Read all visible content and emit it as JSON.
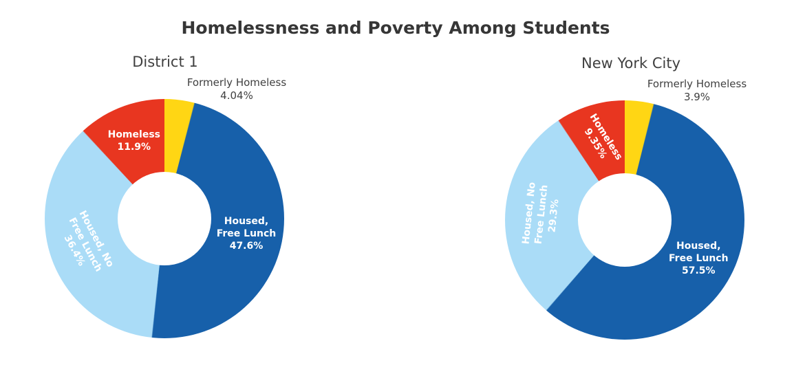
{
  "page_title": "Homelessness and Poverty Among Students",
  "chart_data": [
    {
      "type": "pie",
      "variant": "donut",
      "title": "District 1",
      "hole_ratio": 0.39,
      "direction": "clockwise",
      "start_angle_deg": 0,
      "inside_label_color": "#FFFFFF",
      "segments": [
        {
          "name": "Formerly Homeless",
          "value": 4.04,
          "display": "4.04%",
          "color": "#FFD614",
          "label_lines": [
            "Formerly Homeless",
            "4.04%"
          ],
          "label_placement": "outside",
          "label_rotation": 0
        },
        {
          "name": "Housed, Free Lunch",
          "value": 47.6,
          "display": "47.6%",
          "color": "#1760AA",
          "label_lines": [
            "Housed,",
            "Free Lunch",
            "47.6%"
          ],
          "label_placement": "inside",
          "label_rotation": 0
        },
        {
          "name": "Housed, No Free Lunch",
          "value": 36.4,
          "display": "36.4%",
          "color": "#AADCF7",
          "label_lines": [
            "Housed, No",
            "Free Lunch",
            "36.4%"
          ],
          "label_placement": "inside",
          "label_rotation": 62
        },
        {
          "name": "Homeless",
          "value": 11.9,
          "display": "11.9%",
          "color": "#E83620",
          "label_lines": [
            "Homeless",
            "11.9%"
          ],
          "label_placement": "inside",
          "label_rotation": 0
        }
      ]
    },
    {
      "type": "pie",
      "variant": "donut",
      "title": "New York City",
      "hole_ratio": 0.39,
      "direction": "clockwise",
      "start_angle_deg": 0,
      "inside_label_color": "#FFFFFF",
      "segments": [
        {
          "name": "Formerly Homeless",
          "value": 3.9,
          "display": "3.9%",
          "color": "#FFD614",
          "label_lines": [
            "Formerly Homeless",
            "3.9%"
          ],
          "label_placement": "outside",
          "label_rotation": 0
        },
        {
          "name": "Housed, Free Lunch",
          "value": 57.5,
          "display": "57.5%",
          "color": "#1760AA",
          "label_lines": [
            "Housed,",
            "Free Lunch",
            "57.5%"
          ],
          "label_placement": "inside",
          "label_rotation": 0
        },
        {
          "name": "Housed, No Free Lunch",
          "value": 29.3,
          "display": "29.3%",
          "color": "#AADCF7",
          "label_lines": [
            "Housed, No",
            "Free Lunch",
            "29.3%"
          ],
          "label_placement": "inside",
          "label_rotation": -84
        },
        {
          "name": "Homeless",
          "value": 9.35,
          "display": "9.35%",
          "color": "#E83620",
          "label_lines": [
            "Homeless",
            "9.35%"
          ],
          "label_placement": "inside",
          "label_rotation": 58
        }
      ]
    }
  ]
}
